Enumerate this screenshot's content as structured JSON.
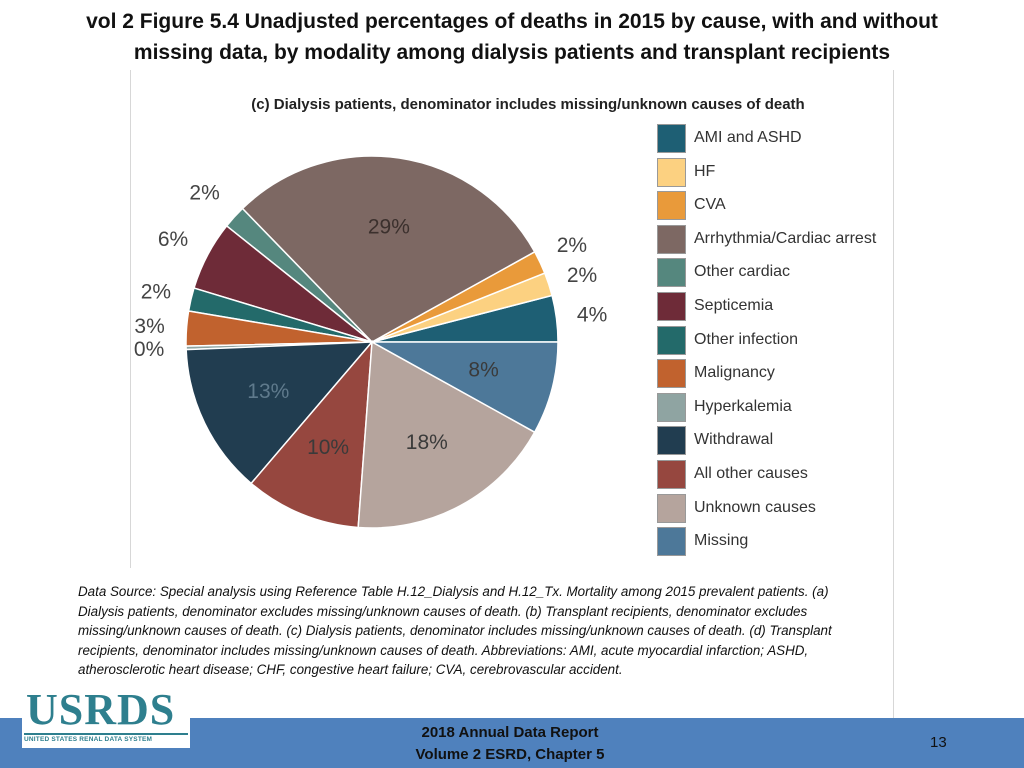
{
  "slide": {
    "title_line1": "vol 2 Figure 5.4 Unadjusted percentages of deaths in 2015 by cause, with and without",
    "title_line2": "missing data, by modality among dialysis patients and transplant recipients"
  },
  "chart_data": {
    "type": "pie",
    "title": "(c) Dialysis patients, denominator includes missing/unknown causes of death",
    "slices": [
      {
        "name": "AMI and ASHD",
        "value": 4,
        "label": "4%",
        "color": "#1e5f74"
      },
      {
        "name": "HF",
        "value": 2,
        "label": "2%",
        "color": "#fcd181"
      },
      {
        "name": "CVA",
        "value": 2,
        "label": "2%",
        "color": "#e99a3a"
      },
      {
        "name": "Arrhythmia/Cardiac arrest",
        "value": 29,
        "label": "29%",
        "color": "#7d6863"
      },
      {
        "name": "Other cardiac",
        "value": 2,
        "label": "2%",
        "color": "#55877e"
      },
      {
        "name": "Septicemia",
        "value": 6,
        "label": "6%",
        "color": "#6e2b38"
      },
      {
        "name": "Other infection",
        "value": 2,
        "label": "2%",
        "color": "#236a6a"
      },
      {
        "name": "Malignancy",
        "value": 3,
        "label": "3%",
        "color": "#c1622e"
      },
      {
        "name": "Hyperkalemia",
        "value": 0.3,
        "label": "0%",
        "color": "#8fa4a2"
      },
      {
        "name": "Withdrawal",
        "value": 13,
        "label": "13%",
        "color": "#213d50"
      },
      {
        "name": "All other causes",
        "value": 10,
        "label": "10%",
        "color": "#96473f"
      },
      {
        "name": "Unknown causes",
        "value": 18,
        "label": "18%",
        "color": "#b5a49d"
      },
      {
        "name": "Missing",
        "value": 8,
        "label": "8%",
        "color": "#4d7899"
      }
    ],
    "start_angle_deg": 0,
    "direction": "counterclockwise",
    "legend_position": "right"
  },
  "source_note": {
    "lines": [
      "Data Source: Special analysis using Reference Table H.12_Dialysis and H.12_Tx. Mortality among 2015 prevalent patients. (a)",
      "Dialysis patients, denominator excludes missing/unknown causes of death. (b) Transplant recipients, denominator excludes",
      "missing/unknown causes of death. (c) Dialysis patients, denominator includes missing/unknown causes of death. (d) Transplant",
      "recipients, denominator includes missing/unknown causes of death. Abbreviations: AMI, acute myocardial infarction; ASHD,",
      "atherosclerotic heart disease; CHF, congestive heart failure; CVA, cerebrovascular accident."
    ]
  },
  "logo": {
    "name": "USRDS",
    "subtitle": "UNITED STATES RENAL DATA SYSTEM"
  },
  "footer": {
    "line1": "2018 Annual Data Report",
    "line2": "Volume 2 ESRD, Chapter 5",
    "page_number": "13",
    "bar_color": "#4f81bd"
  }
}
